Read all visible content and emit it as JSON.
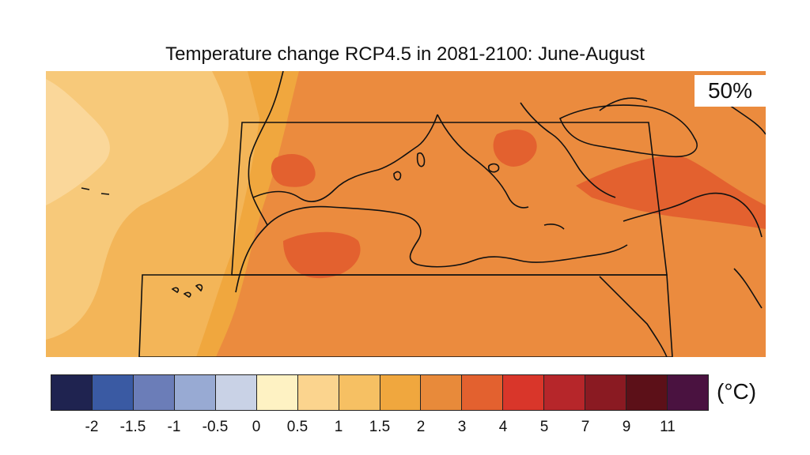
{
  "title": "Temperature change RCP4.5 in 2081-2100: June-August",
  "percentile_label": "50%",
  "unit_label": "(°C)",
  "colorbar": {
    "colors": [
      "#1f2350",
      "#3a5aa3",
      "#6b7db8",
      "#98aad3",
      "#c9d2e6",
      "#fef2c3",
      "#fbd48e",
      "#f6c063",
      "#f0a73e",
      "#e88a3a",
      "#e3612f",
      "#d9362a",
      "#b6262a",
      "#8a1a22",
      "#5c1018",
      "#4a1240"
    ],
    "tick_labels": [
      "-2",
      "-1.5",
      "-1",
      "-0.5",
      "0",
      "0.5",
      "1",
      "1.5",
      "2",
      "3",
      "4",
      "5",
      "7",
      "9",
      "11"
    ]
  },
  "map_legend_colors": {
    "ocean_west": "#f6c168",
    "ocean_far_west": "#f8d08a",
    "land_general": "#eb8b3e",
    "hotspot": "#e3612f",
    "coast_transition": "#f0a73e"
  }
}
